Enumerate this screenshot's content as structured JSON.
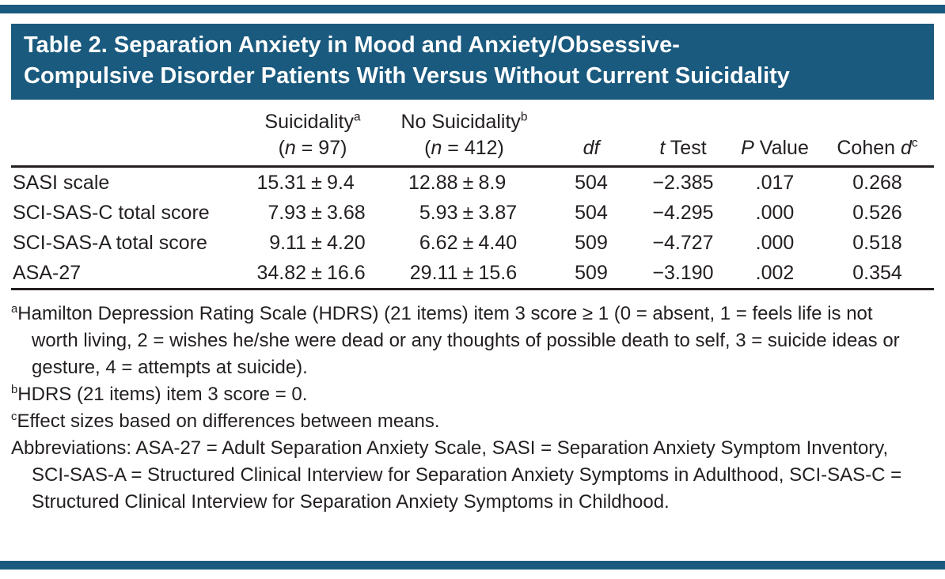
{
  "colors": {
    "accent": "#1A5A7E",
    "text": "#231F20",
    "title_text": "#FFFFFF"
  },
  "title": {
    "line1": "Table 2. Separation Anxiety in Mood and Anxiety/Obsessive-",
    "line2": "Compulsive Disorder Patients With Versus Without Current Suicidality"
  },
  "header": {
    "suicidality": {
      "text": "Suicidality",
      "sup": "a",
      "n_pre": "(",
      "n_it": "n",
      "n_post": " = 97)"
    },
    "no_suicidality": {
      "text": "No Suicidality",
      "sup": "b",
      "n_pre": "(",
      "n_it": "n",
      "n_post": " = 412)"
    },
    "df": "df",
    "ttest": {
      "it": "t",
      "rest": " Test"
    },
    "pvalue": {
      "it": "P",
      "rest": " Value"
    },
    "cohen": {
      "pre": "Cohen ",
      "it": "d",
      "sup": "c"
    }
  },
  "table": {
    "pm": "±",
    "rows": [
      {
        "label": "SASI scale",
        "suic_mean": "15.31",
        "suic_sd": "9.4",
        "nosuic_mean": "12.88",
        "nosuic_sd": "8.9",
        "df": "504",
        "t": "−2.385",
        "p": ".017",
        "d": "0.268"
      },
      {
        "label": "SCI-SAS-C total score",
        "suic_mean": "7.93",
        "suic_sd": "3.68",
        "nosuic_mean": "5.93",
        "nosuic_sd": "3.87",
        "df": "504",
        "t": "−4.295",
        "p": ".000",
        "d": "0.526"
      },
      {
        "label": "SCI-SAS-A total score",
        "suic_mean": "9.11",
        "suic_sd": "4.20",
        "nosuic_mean": "6.62",
        "nosuic_sd": "4.40",
        "df": "509",
        "t": "−4.727",
        "p": ".000",
        "d": "0.518"
      },
      {
        "label": "ASA-27",
        "suic_mean": "34.82",
        "suic_sd": "16.6",
        "nosuic_mean": "29.11",
        "nosuic_sd": "15.6",
        "df": "509",
        "t": "−3.190",
        "p": ".002",
        "d": "0.354"
      }
    ]
  },
  "footnotes": [
    {
      "sup": "a",
      "text": "Hamilton Depression Rating Scale (HDRS) (21 items) item 3 score ≥ 1 (0 = absent, 1 = feels life is not worth living, 2 = wishes he/she were dead or any thoughts of possible death to self, 3 = suicide ideas or gesture, 4 = attempts at suicide)."
    },
    {
      "sup": "b",
      "text": "HDRS (21 items) item 3 score = 0."
    },
    {
      "sup": "c",
      "text": "Effect sizes based on differences between means."
    },
    {
      "sup": "",
      "text": "Abbreviations: ASA-27 = Adult Separation Anxiety Scale, SASI = Separation Anxiety Symptom Inventory, SCI-SAS-A = Structured Clinical Interview for Separation Anxiety Symptoms in Adulthood, SCI-SAS-C = Structured Clinical Interview for Separation Anxiety Symptoms in Childhood."
    }
  ]
}
